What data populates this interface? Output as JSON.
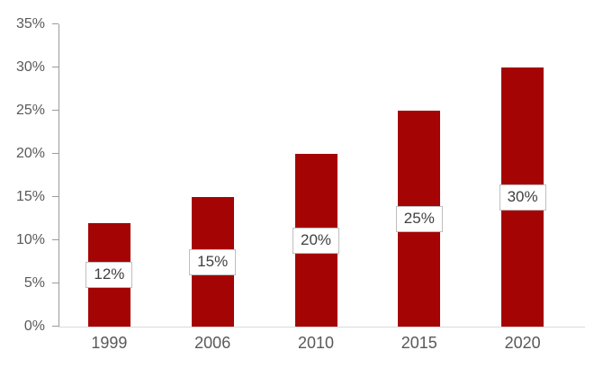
{
  "chart_data": {
    "type": "bar",
    "title": "",
    "xlabel": "",
    "ylabel": "",
    "categories": [
      "1999",
      "2006",
      "2010",
      "2015",
      "2020"
    ],
    "values": [
      12,
      15,
      20,
      25,
      30
    ],
    "data_labels": [
      "12%",
      "15%",
      "20%",
      "25%",
      "30%"
    ],
    "ylim": [
      0,
      35
    ],
    "ytick_step": 5,
    "ytick_labels": [
      "0%",
      "5%",
      "10%",
      "15%",
      "20%",
      "25%",
      "30%",
      "35%"
    ],
    "grid": "off",
    "legend": "none",
    "colors": {
      "bar": "#a50404",
      "y_axis_line": "#9b9b9b",
      "x_axis_line": "#d9d9d9",
      "tick_mark": "#9b9b9b",
      "axis_label_text": "#595959",
      "data_label_text": "#404040",
      "data_label_bg": "#ffffff",
      "data_label_border": "#bfbfbf",
      "background": "#ffffff"
    }
  }
}
